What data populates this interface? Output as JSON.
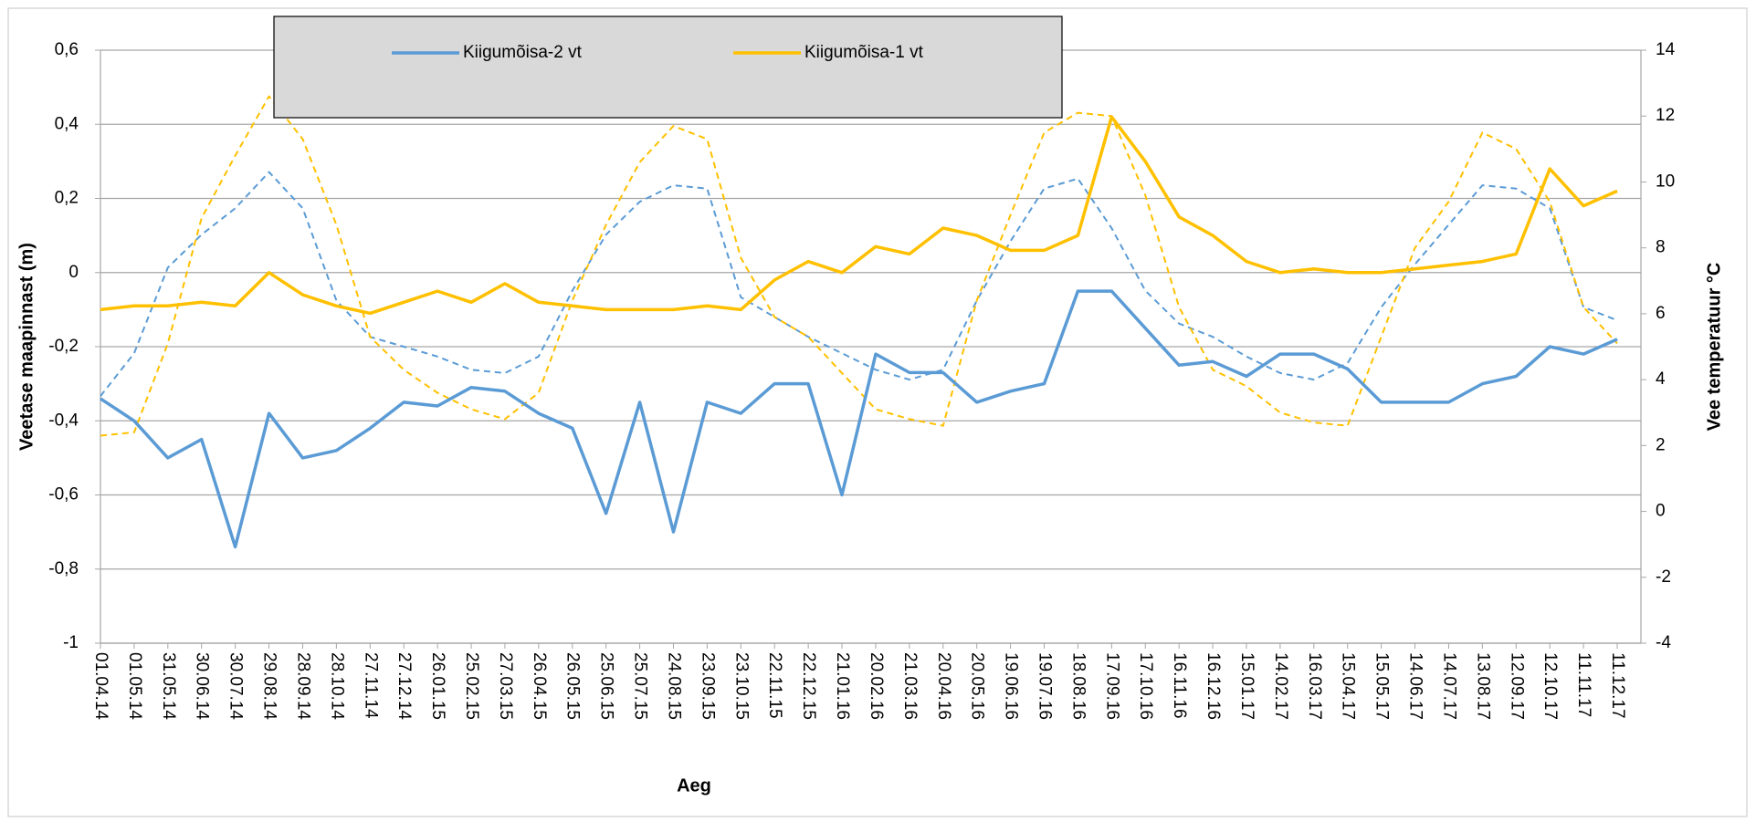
{
  "chart_data": {
    "type": "line",
    "xlabel": "Aeg",
    "ylabel": "Veetase maapinnast (m)",
    "y2label": "Vee temperatuur °C",
    "categories": [
      "01.04.14",
      "01.05.14",
      "31.05.14",
      "30.06.14",
      "30.07.14",
      "29.08.14",
      "28.09.14",
      "28.10.14",
      "27.11.14",
      "27.12.14",
      "26.01.15",
      "25.02.15",
      "27.03.15",
      "26.04.15",
      "26.05.15",
      "25.06.15",
      "25.07.15",
      "24.08.15",
      "23.09.15",
      "23.10.15",
      "22.11.15",
      "22.12.15",
      "21.01.16",
      "20.02.16",
      "21.03.16",
      "20.04.16",
      "20.05.16",
      "19.06.16",
      "19.07.16",
      "18.08.16",
      "17.09.16",
      "17.10.16",
      "16.11.16",
      "16.12.16",
      "15.01.17",
      "14.02.17",
      "16.03.17",
      "15.04.17",
      "15.05.17",
      "14.06.17",
      "14.07.17",
      "13.08.17",
      "12.09.17",
      "12.10.17",
      "11.11.17",
      "11.12.17"
    ],
    "series": [
      {
        "name": "Kiigumõisa-2 vt",
        "color": "#5b9bd5",
        "values": [
          -0.34,
          -0.4,
          -0.5,
          -0.45,
          -0.74,
          -0.38,
          -0.5,
          -0.48,
          -0.42,
          -0.35,
          -0.36,
          -0.31,
          -0.32,
          -0.38,
          -0.42,
          -0.65,
          -0.35,
          -0.7,
          -0.35,
          -0.38,
          -0.3,
          -0.3,
          -0.6,
          -0.22,
          -0.27,
          -0.27,
          -0.35,
          -0.32,
          -0.3,
          -0.05,
          -0.05,
          -0.15,
          -0.25,
          -0.24,
          -0.28,
          -0.22,
          -0.22,
          -0.26,
          -0.35,
          -0.35,
          -0.35,
          -0.3,
          -0.28,
          -0.2,
          -0.22,
          -0.18
        ]
      },
      {
        "name": "Kiigumõisa-1 vt",
        "color": "#ffc000",
        "values": [
          -0.1,
          -0.09,
          -0.09,
          -0.08,
          -0.09,
          0,
          -0.06,
          -0.09,
          -0.11,
          -0.08,
          -0.05,
          -0.08,
          -0.03,
          -0.08,
          -0.09,
          -0.1,
          -0.1,
          -0.1,
          -0.09,
          -0.1,
          -0.02,
          0.03,
          0,
          0.07,
          0.05,
          0.12,
          0.1,
          0.06,
          0.06,
          0.1,
          0.42,
          0.3,
          0.15,
          0.1,
          0.03,
          0,
          0.01,
          0,
          0,
          0.01,
          0.02,
          0.03,
          0.05,
          0.28,
          0.18,
          0.22
        ]
      },
      {
        "color": "#5b9bd5",
        "axis": "y2",
        "dashed": true,
        "values": [
          3.5,
          4.8,
          7.4,
          8.4,
          9.2,
          10.3,
          9.2,
          6.4,
          5.3,
          5,
          4.7,
          4.3,
          4.2,
          4.7,
          6.7,
          8.4,
          9.4,
          9.9,
          9.8,
          6.5,
          5.9,
          5.3,
          4.8,
          4.3,
          4,
          4.3,
          6.4,
          8.2,
          9.8,
          10.1,
          8.6,
          6.7,
          5.7,
          5.3,
          4.7,
          4.2,
          4,
          4.5,
          6.2,
          7.5,
          8.7,
          9.9,
          9.8,
          9.2,
          6.2,
          5.8
        ]
      },
      {
        "color": "#ffc000",
        "axis": "y2",
        "dashed": true,
        "values": [
          2.3,
          2.4,
          5.1,
          8.9,
          10.8,
          12.6,
          11.3,
          8.7,
          5.3,
          4.3,
          3.6,
          3.1,
          2.8,
          3.6,
          6.4,
          8.7,
          10.6,
          11.7,
          11.3,
          7.7,
          5.9,
          5.3,
          4.2,
          3.1,
          2.8,
          2.6,
          6.4,
          9,
          11.5,
          12.1,
          12,
          9.6,
          6.2,
          4.3,
          3.8,
          3,
          2.7,
          2.6,
          5.3,
          8,
          9.4,
          11.5,
          11,
          9.4,
          6.2,
          5.1
        ]
      }
    ],
    "ylim": [
      -1,
      0.6
    ],
    "yticks": [
      -1,
      {
        "value": -0.8,
        "label": "-0,8"
      },
      {
        "value": -0.6,
        "label": "-0,6"
      },
      {
        "value": -0.4,
        "label": "-0,4"
      },
      {
        "value": -0.2,
        "label": "-0,2"
      },
      0,
      {
        "value": 0.2,
        "label": "0,2"
      },
      {
        "value": 0.4,
        "label": "0,4"
      },
      {
        "value": 0.6,
        "label": "0,6"
      }
    ],
    "y2lim": [
      -4,
      14
    ],
    "y2ticks": [
      -4,
      -2,
      0,
      2,
      4,
      6,
      8,
      10,
      12,
      14
    ],
    "grid": true,
    "legend": "top"
  }
}
